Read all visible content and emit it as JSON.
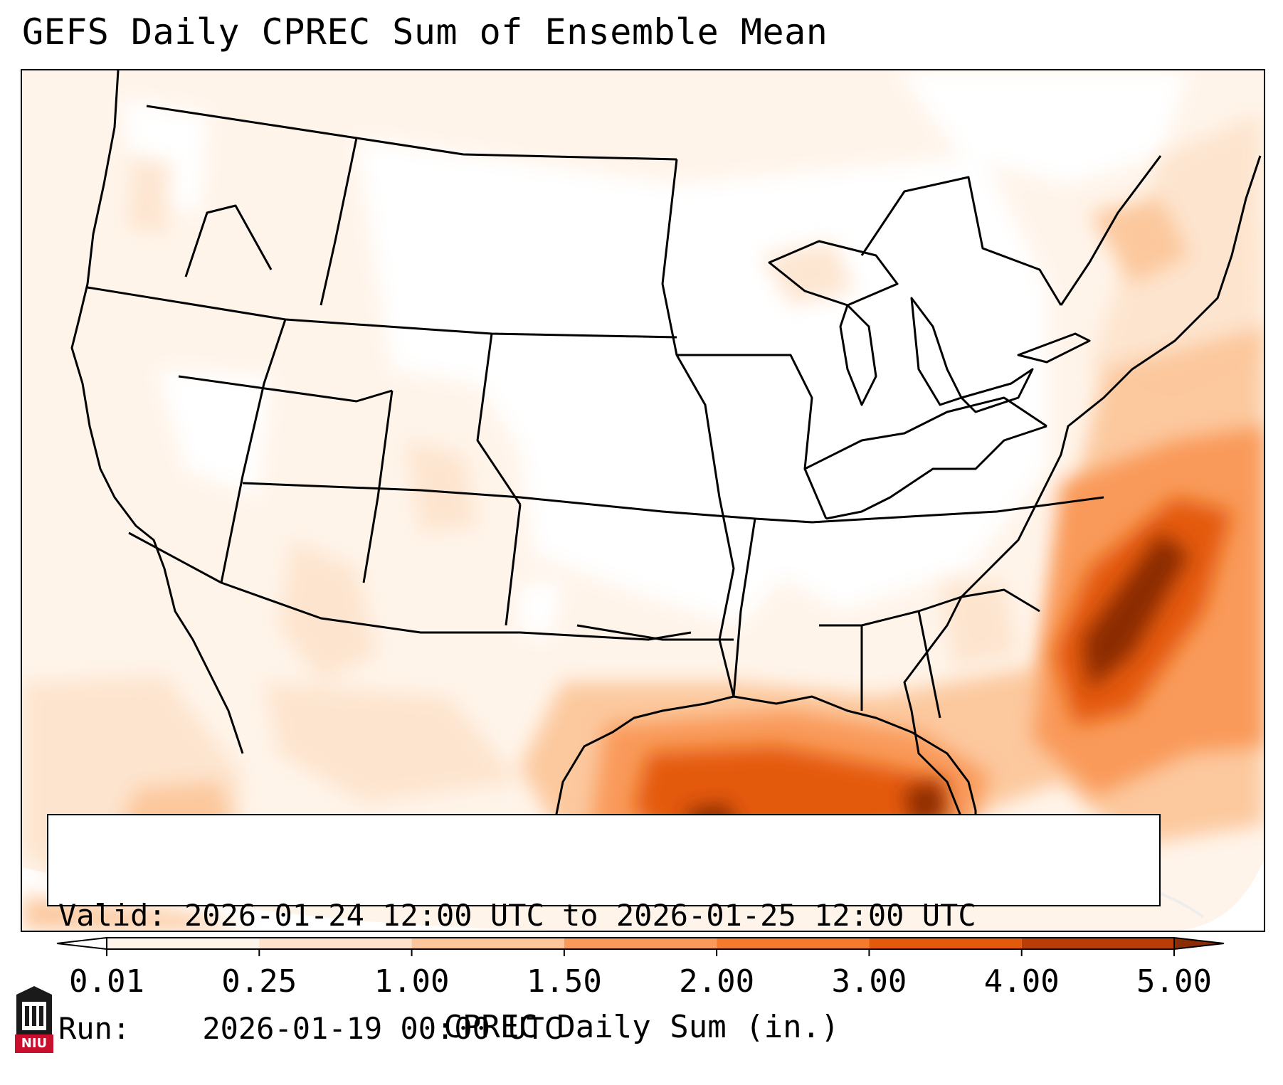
{
  "title": "GEFS Daily CPREC Sum of Ensemble Mean",
  "info": {
    "valid_label": "Valid:",
    "valid_text": "2026-01-24 12:00 UTC to 2026-01-25 12:00 UTC",
    "run_label": "Run:",
    "run_text": "2026-01-19 00:00 UTC"
  },
  "colorbar": {
    "title": "CPREC Daily Sum (in.)",
    "ticks": [
      "0.01",
      "0.25",
      "1.00",
      "1.50",
      "2.00",
      "3.00",
      "4.00",
      "5.00"
    ],
    "colors": [
      "#fff4ea",
      "#fde3cc",
      "#fcc69a",
      "#f99a5a",
      "#f57a2e",
      "#e45a0d",
      "#b93d06",
      "#8a2c04"
    ],
    "extend": "both"
  },
  "logo": {
    "text": "NIU"
  },
  "colors": {
    "light": "#fff4ea",
    "pale": "#fde3cc",
    "tan": "#fcc69a",
    "orange": "#f99a5a",
    "dark_orange": "#e45a0d",
    "brown": "#8a2c04",
    "niu_red": "#c8102e"
  }
}
